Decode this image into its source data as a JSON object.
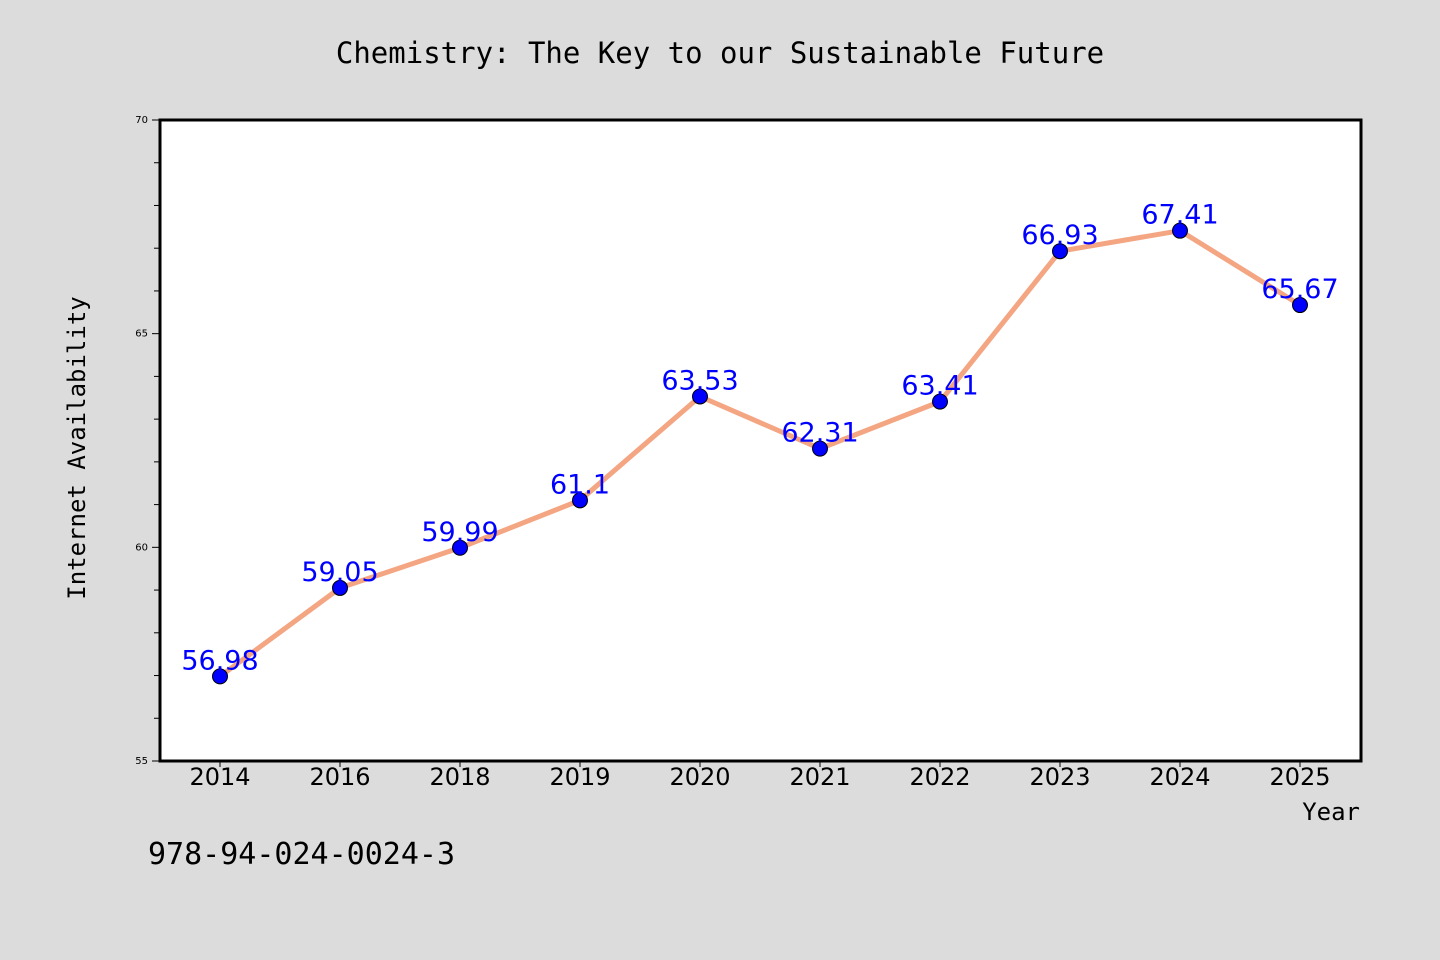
{
  "chart_data": {
    "type": "line",
    "title": "Chemistry: The Key to our Sustainable Future",
    "xlabel": "Year",
    "ylabel": "Internet Availability",
    "categories": [
      "2014",
      "2016",
      "2018",
      "2019",
      "2020",
      "2021",
      "2022",
      "2023",
      "2024",
      "2025"
    ],
    "series": [
      {
        "values": [
          56.98,
          59.05,
          59.99,
          61.1,
          63.53,
          62.31,
          63.41,
          66.93,
          67.41,
          65.67
        ],
        "data_labels": [
          "56.98",
          "59.05",
          "59.99",
          "61.1",
          "63.53",
          "62.31",
          "63.41",
          "66.93",
          "67.41",
          "65.67"
        ],
        "line_color": "#f4a582",
        "marker_color": "#0000ff",
        "label_color": "#0000ff"
      }
    ],
    "ylim": [
      55,
      70
    ],
    "yticks": [
      55,
      60,
      65,
      70
    ],
    "grid": false,
    "legend": "none",
    "background_color": "#dcdcdc",
    "plot_background_color": "#ffffff"
  },
  "annotation": "978-94-024-0024-3"
}
